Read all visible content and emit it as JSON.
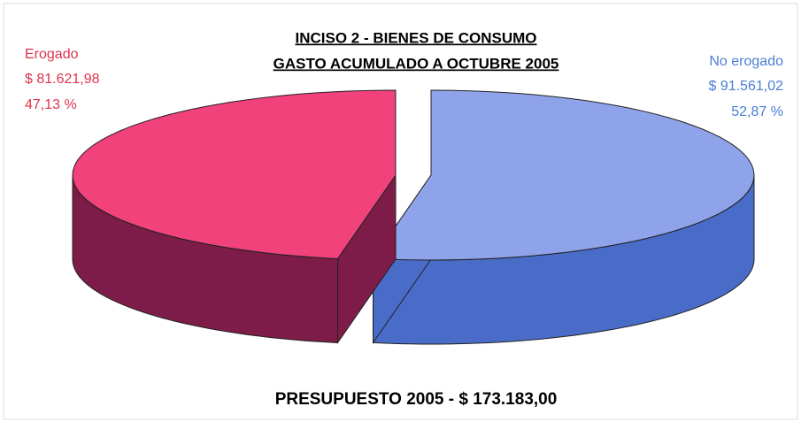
{
  "chart_data": {
    "type": "pie3d",
    "title": "INCISO 2 - BIENES DE CONSUMO",
    "subtitle": "GASTO ACUMULADO A OCTUBRE 2005",
    "categories": [
      "No erogado",
      "Erogado"
    ],
    "values": [
      52.87,
      47.13
    ],
    "value_labels": [
      "52,87 %",
      "47,13 %"
    ],
    "amounts": [
      91561.02,
      81621.98
    ],
    "amount_labels": [
      "$ 91.561,02",
      "$ 81.621,98"
    ],
    "colors": [
      "#8fa3ea",
      "#f2427c"
    ],
    "side_colors": [
      "#4a6cc9",
      "#7d1c48"
    ],
    "label_colors": [
      "#4a7dd6",
      "#e0324c"
    ],
    "footer": "PRESUPUESTO 2005 - $ 173.183,00"
  }
}
